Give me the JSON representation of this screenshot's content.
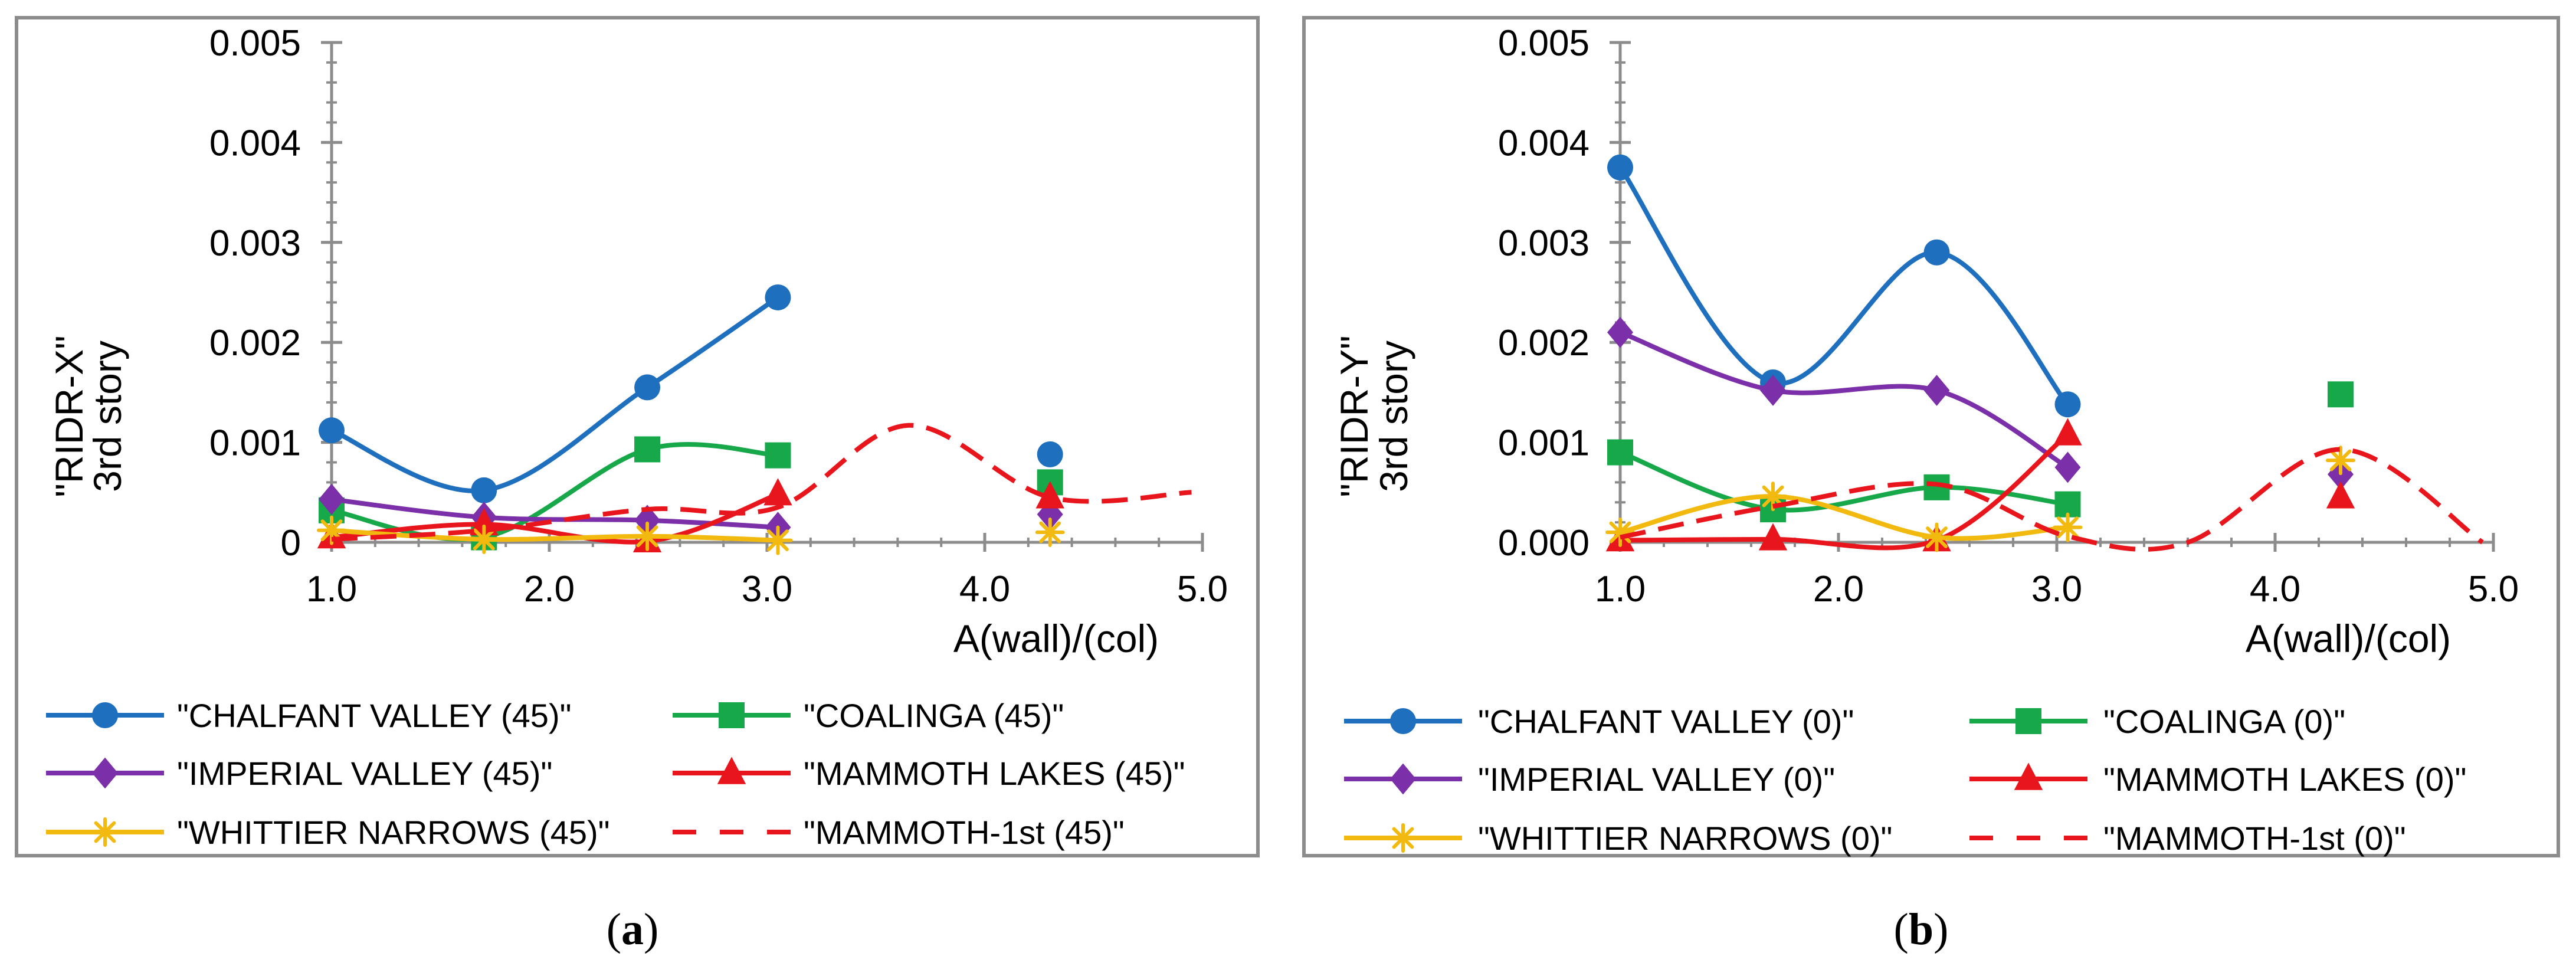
{
  "chart_data": [
    {
      "type": "line",
      "panel_label": "a",
      "ylabel_line1": "\"RIDR-X\"",
      "ylabel_line2": "3rd story",
      "xlabel": "A(wall)/(col)",
      "xlim": [
        1.0,
        5.0
      ],
      "ylim": [
        0,
        0.005
      ],
      "x_ticks": [
        "1.0",
        "2.0",
        "3.0",
        "4.0",
        "5.0"
      ],
      "y_ticks": [
        "0",
        "0.001",
        "0.002",
        "0.003",
        "0.004",
        "0.005"
      ],
      "series": [
        {
          "name": "\"CHALFANT VALLEY (45)\"",
          "color": "#1f6fbf",
          "marker": "circle",
          "dash": false,
          "x": [
            1.0,
            1.7,
            2.45,
            3.05
          ],
          "y": [
            0.00112,
            0.00052,
            0.00155,
            0.00245
          ],
          "extra": [
            {
              "x": 4.3,
              "y": 0.00088
            }
          ]
        },
        {
          "name": "\"COALINGA (45)\"",
          "color": "#17a84a",
          "marker": "square",
          "dash": false,
          "x": [
            1.0,
            1.7,
            2.45,
            3.05
          ],
          "y": [
            0.00032,
            5e-05,
            0.00093,
            0.00087
          ],
          "extra": [
            {
              "x": 4.3,
              "y": 0.0006
            }
          ]
        },
        {
          "name": "\"IMPERIAL VALLEY (45)\"",
          "color": "#7b2fa8",
          "marker": "diamond",
          "dash": false,
          "x": [
            1.0,
            1.7,
            2.45,
            3.05
          ],
          "y": [
            0.00043,
            0.00025,
            0.00022,
            0.00015
          ],
          "extra": [
            {
              "x": 4.3,
              "y": 0.00028
            }
          ]
        },
        {
          "name": "\"MAMMOTH LAKES (45)\"",
          "color": "#e8161c",
          "marker": "triangle",
          "dash": false,
          "x": [
            1.0,
            1.7,
            2.45,
            3.05
          ],
          "y": [
            5e-05,
            0.00018,
            1e-05,
            0.00048
          ],
          "extra": [
            {
              "x": 4.3,
              "y": 0.00045
            }
          ]
        },
        {
          "name": "\"WHITTIER NARROWS (45)\"",
          "color": "#f2b90f",
          "marker": "star",
          "dash": false,
          "x": [
            1.0,
            1.7,
            2.45,
            3.05
          ],
          "y": [
            0.00012,
            3e-05,
            6e-05,
            2e-05
          ],
          "extra": [
            {
              "x": 4.3,
              "y": 0.0001
            }
          ]
        },
        {
          "name": "\"MAMMOTH-1st (45)\"",
          "color": "#e8161c",
          "marker": "none",
          "dash": true,
          "x": [
            1.0,
            1.7,
            2.45,
            3.05,
            3.65,
            4.3,
            4.95
          ],
          "y": [
            3e-05,
            0.00012,
            0.00033,
            0.00035,
            0.00117,
            0.00045,
            0.0005
          ],
          "extra": []
        }
      ]
    },
    {
      "type": "line",
      "panel_label": "b",
      "ylabel_line1": "\"RIDR-Y\"",
      "ylabel_line2": "3rd story",
      "xlabel": "A(wall)/(col)",
      "xlim": [
        1.0,
        5.0
      ],
      "ylim": [
        0,
        0.005
      ],
      "x_ticks": [
        "1.0",
        "2.0",
        "3.0",
        "4.0",
        "5.0"
      ],
      "y_ticks": [
        "0.000",
        "0.001",
        "0.002",
        "0.003",
        "0.004",
        "0.005"
      ],
      "series": [
        {
          "name": "\"CHALFANT VALLEY (0)\"",
          "color": "#1f6fbf",
          "marker": "circle",
          "dash": false,
          "x": [
            1.0,
            1.7,
            2.45,
            3.05
          ],
          "y": [
            0.00375,
            0.0016,
            0.0029,
            0.00138
          ],
          "extra": []
        },
        {
          "name": "\"COALINGA (0)\"",
          "color": "#17a84a",
          "marker": "square",
          "dash": false,
          "x": [
            1.0,
            1.7,
            2.45,
            3.05
          ],
          "y": [
            0.0009,
            0.00033,
            0.00055,
            0.00038
          ],
          "extra": [
            {
              "x": 4.3,
              "y": 0.00148
            }
          ]
        },
        {
          "name": "\"IMPERIAL VALLEY (0)\"",
          "color": "#7b2fa8",
          "marker": "diamond",
          "dash": false,
          "x": [
            1.0,
            1.7,
            2.45,
            3.05
          ],
          "y": [
            0.0021,
            0.00152,
            0.00152,
            0.00075
          ],
          "extra": [
            {
              "x": 4.3,
              "y": 0.00068
            }
          ]
        },
        {
          "name": "\"MAMMOTH LAKES (0)\"",
          "color": "#e8161c",
          "marker": "triangle",
          "dash": false,
          "x": [
            1.0,
            1.7,
            2.45,
            3.05
          ],
          "y": [
            2e-05,
            3e-05,
            2e-05,
            0.00108
          ],
          "extra": [
            {
              "x": 4.3,
              "y": 0.00045
            }
          ]
        },
        {
          "name": "\"WHITTIER NARROWS (0)\"",
          "color": "#f2b90f",
          "marker": "star",
          "dash": false,
          "x": [
            1.0,
            1.7,
            2.45,
            3.05
          ],
          "y": [
            0.0001,
            0.00046,
            5e-05,
            0.00015
          ],
          "extra": [
            {
              "x": 4.3,
              "y": 0.00082
            }
          ]
        },
        {
          "name": "\"MAMMOTH-1st (0)\"",
          "color": "#e8161c",
          "marker": "none",
          "dash": true,
          "x": [
            1.0,
            1.7,
            2.45,
            3.05,
            3.6,
            4.3,
            4.95
          ],
          "y": [
            5e-05,
            0.00036,
            0.00058,
            6e-05,
            0.0,
            0.00093,
            0.0
          ],
          "extra": []
        }
      ]
    }
  ]
}
